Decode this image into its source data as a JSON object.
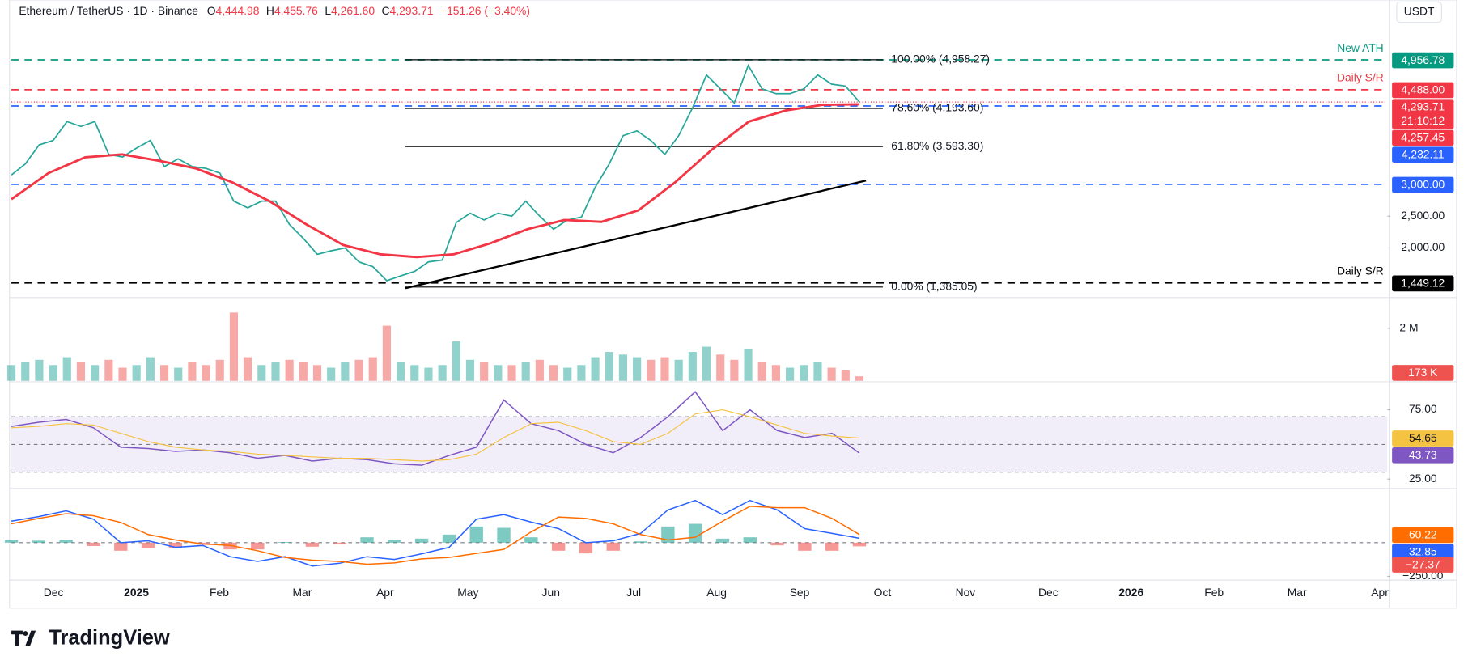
{
  "header": {
    "symbol": "Ethereum / TetherUS · 1D · Binance",
    "open_label": "O",
    "open": "4,444.98",
    "high_label": "H",
    "high": "4,455.76",
    "low_label": "L",
    "low": "4,261.60",
    "close_label": "C",
    "close": "4,293.71",
    "change": "−151.26 (−3.40%)"
  },
  "currency": "USDT",
  "brand": "TradingView",
  "time_axis": [
    "Dec",
    "2025",
    "Feb",
    "Mar",
    "Apr",
    "May",
    "Jun",
    "Jul",
    "Aug",
    "Sep",
    "Oct",
    "Nov",
    "Dec",
    "2026",
    "Feb",
    "Mar",
    "Apr"
  ],
  "chart_data": [
    {
      "type": "line",
      "series": [
        {
          "color": "#26a69a",
          "values": [
            3147,
            3320,
            3620,
            3690,
            3985,
            3910,
            3985,
            3470,
            3430,
            3570,
            3690,
            3280,
            3400,
            3280,
            3250,
            3175,
            2735,
            2630,
            2735,
            2735,
            2370,
            2150,
            1900,
            1955,
            2000,
            1780,
            1705,
            1485,
            1560,
            1630,
            1780,
            1810,
            2400,
            2545,
            2440,
            2545,
            2500,
            2735,
            2500,
            2295,
            2440,
            2485,
            2955,
            3320,
            3765,
            3840,
            3690,
            3470,
            3765,
            4205,
            4720,
            4500,
            4280,
            4870,
            4500,
            4425,
            4425,
            4500,
            4720,
            4575,
            4545,
            4293.71
          ]
        },
        {
          "color": "#f23645",
          "values": [
            2765,
            3175,
            3425,
            3470,
            3370,
            3250,
            3030,
            2735,
            2370,
            2045,
            1900,
            1855,
            1900,
            2075,
            2295,
            2440,
            2410,
            2590,
            3030,
            3545,
            3985,
            4160,
            4250,
            4257.45
          ]
        }
      ],
      "ylim": [
        1220,
        5530
      ],
      "yticks": [
        {
          "value": 2500,
          "label": "2,500.00"
        },
        {
          "value": 2000,
          "label": "2,000.00"
        }
      ],
      "last_price": {
        "value": 4293.71,
        "label": "4,293.71",
        "countdown": "21:10:12"
      },
      "ma_label": "4,257.45",
      "levels": [
        {
          "value": 4956.78,
          "label": "4,956.78",
          "color": "#089981",
          "note": "New ATH"
        },
        {
          "value": 4488,
          "label": "4,488.00",
          "color": "#f23645",
          "note": "Daily S/R"
        },
        {
          "value": 4232.11,
          "label": "4,232.11",
          "color": "#2962ff"
        },
        {
          "value": 3000,
          "label": "3,000.00",
          "color": "#2962ff"
        },
        {
          "value": 1449.12,
          "label": "1,449.12",
          "color": "#000000",
          "note": "Daily S/R"
        }
      ],
      "fib": [
        {
          "value": 4958.27,
          "label": "100.00% (4,958.27)"
        },
        {
          "value": 4193.6,
          "label": "78.60% (4,193.60)"
        },
        {
          "value": 3593.3,
          "label": "61.80% (3,593.30)"
        },
        {
          "value": 1385.05,
          "label": "0.00% (1,385.05)"
        }
      ]
    },
    {
      "type": "bar",
      "values": [
        0.6,
        0.7,
        0.8,
        0.6,
        0.9,
        0.7,
        0.6,
        0.8,
        0.5,
        0.6,
        0.9,
        0.6,
        0.5,
        0.7,
        0.6,
        0.8,
        2.6,
        0.9,
        0.6,
        0.7,
        0.8,
        0.7,
        0.6,
        0.5,
        0.7,
        0.8,
        0.9,
        2.1,
        0.7,
        0.6,
        0.5,
        0.6,
        1.5,
        0.8,
        0.7,
        0.6,
        0.6,
        0.7,
        0.8,
        0.6,
        0.5,
        0.6,
        0.9,
        1.1,
        1.0,
        0.9,
        0.8,
        0.9,
        0.8,
        1.1,
        1.3,
        1.0,
        0.8,
        1.2,
        0.7,
        0.6,
        0.5,
        0.6,
        0.7,
        0.5,
        0.4,
        0.173
      ],
      "last_value_label": "173 K",
      "up_color": "#26a69a",
      "down_color": "#ef5350",
      "ylim": [
        0,
        3.1
      ],
      "yticks": [
        {
          "value": 2,
          "label": "2 M"
        }
      ]
    },
    {
      "type": "line",
      "series": [
        {
          "color": "#7e57c2",
          "values": [
            63,
            66,
            68,
            62,
            48,
            47,
            45,
            46,
            44,
            40,
            42,
            38,
            40,
            39,
            36,
            35,
            42,
            48,
            82,
            65,
            60,
            50,
            44,
            55,
            70,
            88,
            60,
            75,
            60,
            55,
            58,
            43.73
          ]
        },
        {
          "color": "#f5c342",
          "values": [
            62,
            63,
            65,
            64,
            58,
            52,
            48,
            46,
            45,
            43,
            42,
            41,
            40,
            40,
            39,
            38,
            39,
            43,
            55,
            65,
            66,
            60,
            52,
            50,
            58,
            72,
            75,
            70,
            64,
            58,
            56,
            54.65
          ]
        }
      ],
      "ylim": [
        19.6,
        93.9
      ],
      "yticks": [
        {
          "value": 75,
          "label": "75.00"
        },
        {
          "value": 25,
          "label": "25.00"
        }
      ],
      "bands": [
        70,
        50,
        30
      ]
    },
    {
      "type": "line",
      "series": [
        {
          "color": "#2962ff",
          "values": [
            160,
            194,
            236,
            174,
            0,
            14,
            -35,
            -21,
            -104,
            -139,
            -104,
            -174,
            -153,
            -104,
            -125,
            -83,
            -35,
            174,
            208,
            153,
            104,
            0,
            14,
            69,
            243,
            313,
            208,
            313,
            243,
            104,
            69,
            32.85
          ]
        },
        {
          "color": "#ff6d00",
          "values": [
            140,
            180,
            215,
            200,
            150,
            60,
            20,
            -10,
            -20,
            -60,
            -110,
            -130,
            -140,
            -160,
            -150,
            -120,
            -110,
            -80,
            -50,
            80,
            190,
            180,
            140,
            60,
            20,
            40,
            160,
            270,
            260,
            260,
            180,
            60.22
          ]
        }
      ],
      "histogram": [
        20,
        15,
        20,
        -25,
        -60,
        -40,
        -40,
        -15,
        -50,
        -50,
        5,
        -30,
        -10,
        40,
        20,
        30,
        60,
        120,
        110,
        40,
        -60,
        -80,
        -60,
        10,
        120,
        140,
        30,
        40,
        -20,
        -60,
        -60,
        -27.37
      ],
      "histogram_last_label": "−27.37",
      "up_color": "#26a69a",
      "down_color": "#ef5350",
      "ylim": [
        -278,
        382
      ],
      "yticks": [
        {
          "value": -250,
          "label": "−250.00"
        }
      ]
    }
  ]
}
